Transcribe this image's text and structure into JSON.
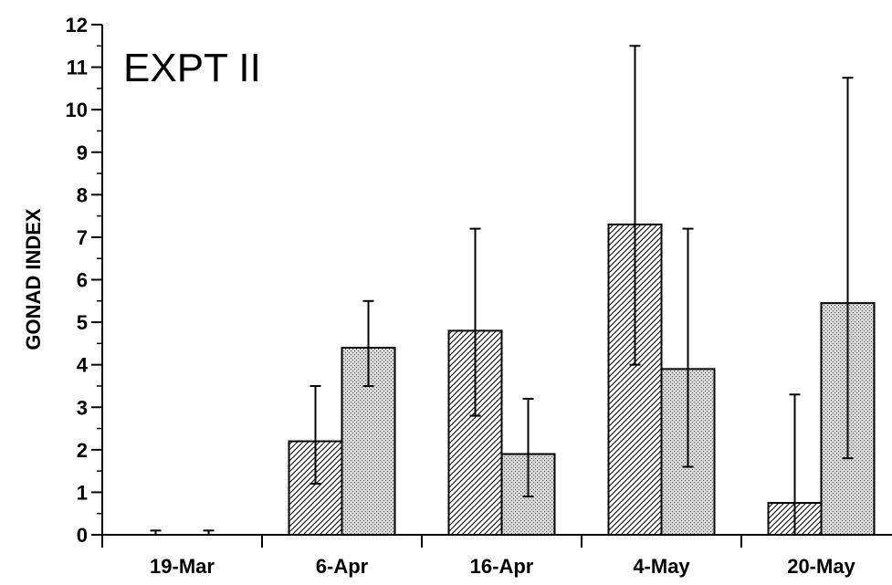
{
  "chart_data": {
    "type": "bar",
    "title": "",
    "annotation": "EXPT II",
    "xlabel": "",
    "ylabel": "GONAD INDEX",
    "ylim": [
      0,
      12
    ],
    "yticks": [
      "0",
      "1",
      "2",
      "3",
      "4",
      "5",
      "6",
      "7",
      "8",
      "9",
      "10",
      "11",
      "12"
    ],
    "categories": [
      "19-Mar",
      "6-Apr",
      "16-Apr",
      "4-May",
      "20-May"
    ],
    "grid": false,
    "series": [
      {
        "pattern": "diagonal-hatch",
        "values": [
          0.0,
          2.2,
          4.8,
          7.3,
          0.75
        ],
        "error_high": [
          0.1,
          3.5,
          7.2,
          11.5,
          3.3
        ],
        "error_low": [
          0.0,
          1.2,
          2.8,
          4.0,
          0.0
        ]
      },
      {
        "pattern": "stipple",
        "values": [
          0.0,
          4.4,
          1.9,
          3.9,
          5.45
        ],
        "error_high": [
          0.1,
          5.5,
          3.2,
          7.2,
          10.75
        ],
        "error_low": [
          0.0,
          3.5,
          0.9,
          1.6,
          1.8
        ]
      }
    ]
  }
}
